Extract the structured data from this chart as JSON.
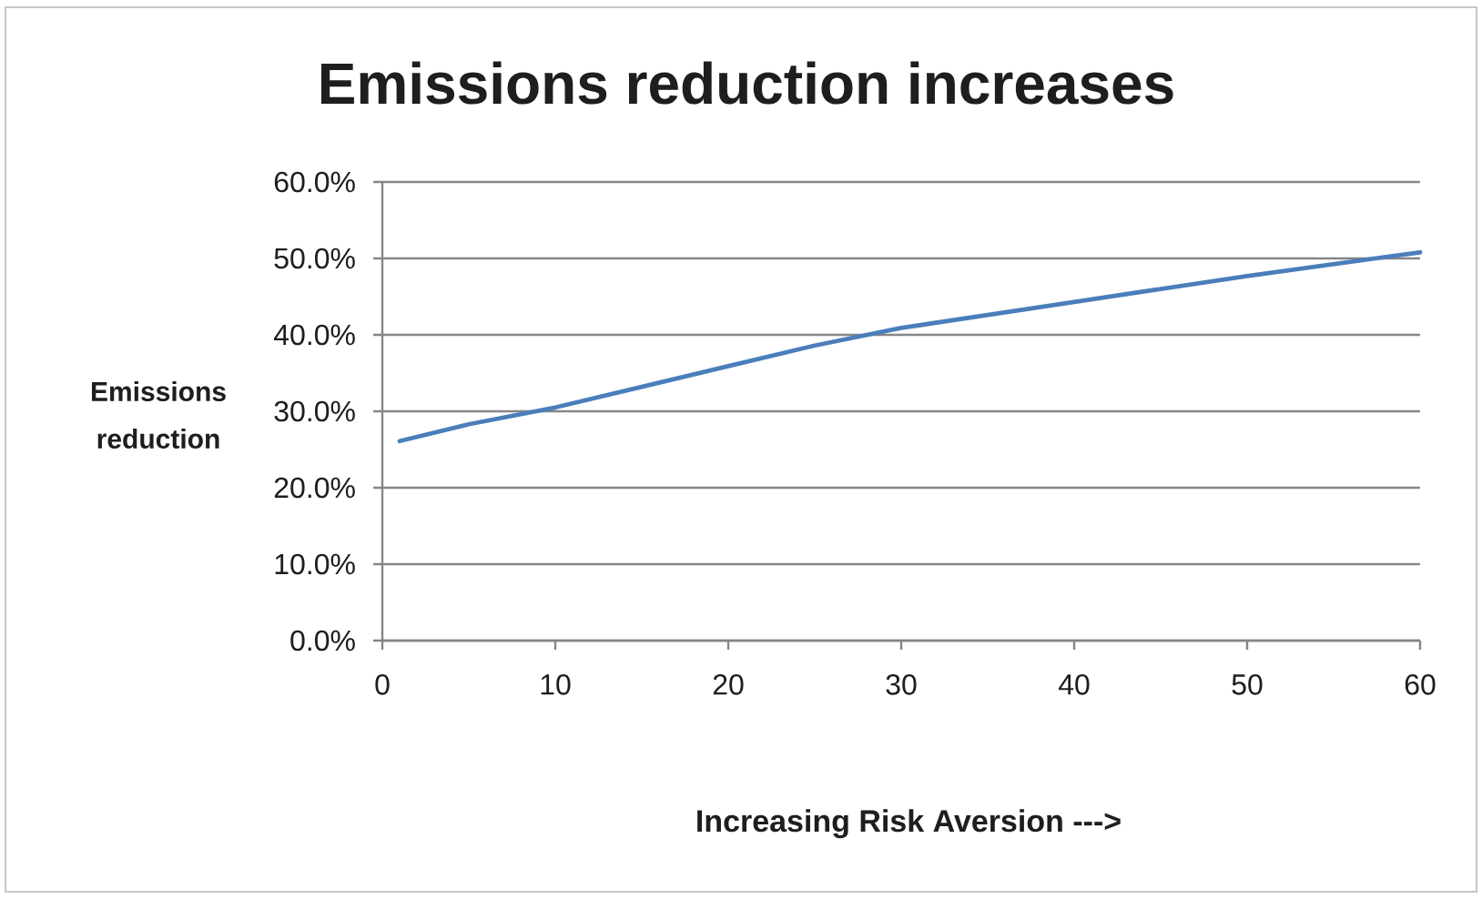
{
  "chart_data": {
    "type": "line",
    "title": "Emissions reduction increases",
    "xlabel": "Increasing Risk Aversion  --->",
    "ylabel": "Emissions reduction",
    "x": [
      1,
      5,
      10,
      15,
      20,
      25,
      30,
      40,
      50,
      60
    ],
    "series": [
      {
        "color": "#4a7ebb",
        "values": [
          26.1,
          28.3,
          30.5,
          33.2,
          35.9,
          38.6,
          40.9,
          44.3,
          47.7,
          50.8
        ]
      }
    ],
    "xlim": [
      0,
      60
    ],
    "xticks": [
      0,
      10,
      20,
      30,
      40,
      50,
      60
    ],
    "ylim": [
      0,
      60
    ],
    "yticks": [
      {
        "value": 0,
        "label": "0.0%"
      },
      {
        "value": 10,
        "label": "10.0%"
      },
      {
        "value": 20,
        "label": "20.0%"
      },
      {
        "value": 30,
        "label": "30.0%"
      },
      {
        "value": 40,
        "label": "40.0%"
      },
      {
        "value": 50,
        "label": "50.0%"
      },
      {
        "value": 60,
        "label": "60.0%"
      }
    ],
    "grid": "y",
    "marker": "none",
    "line_style": "solid"
  }
}
